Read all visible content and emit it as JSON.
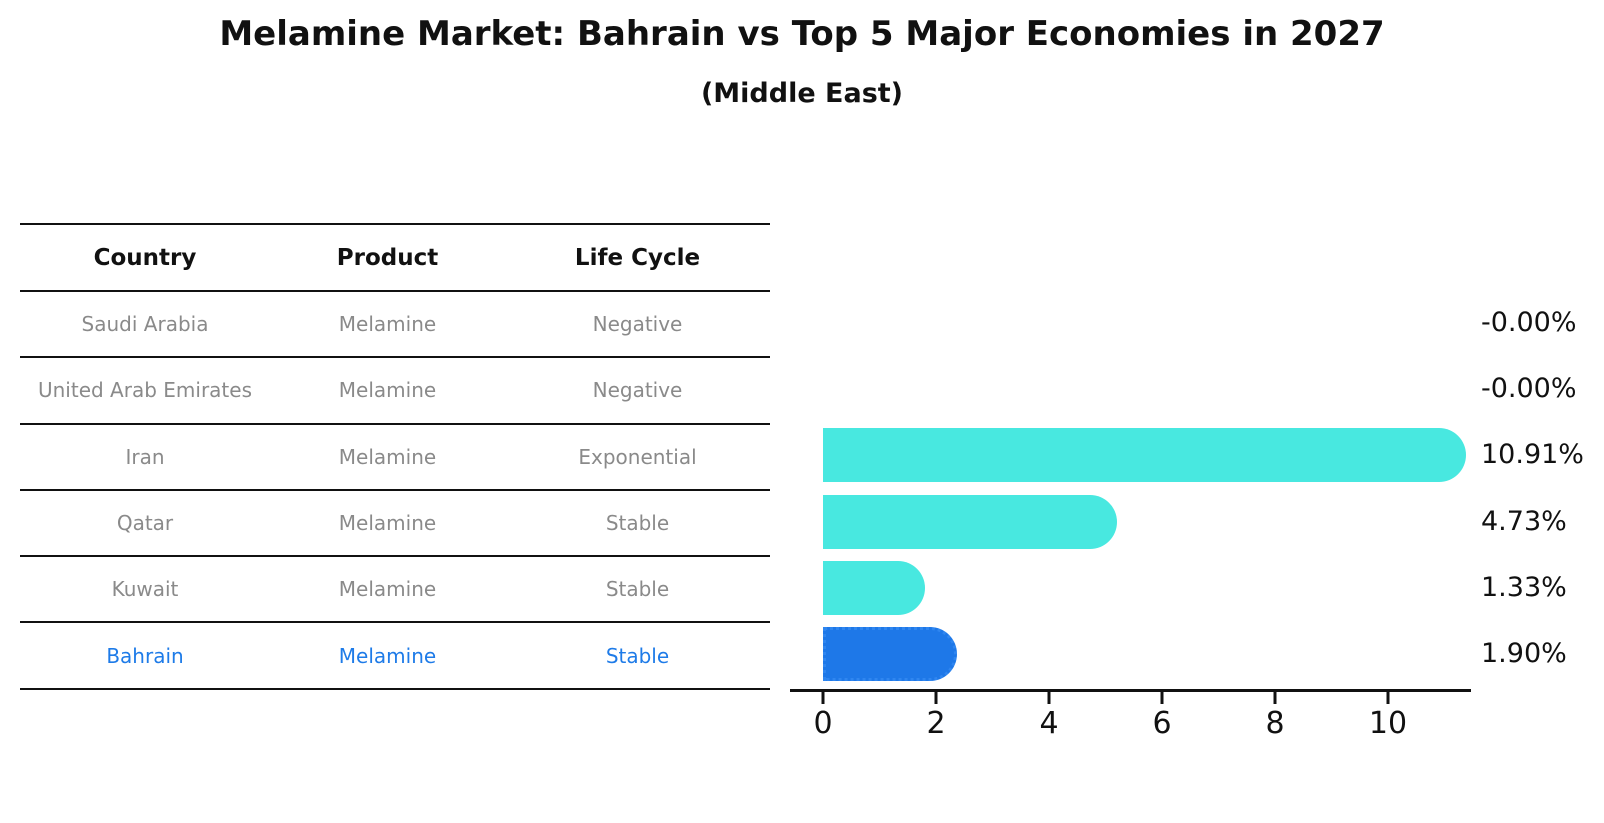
{
  "title": "Melamine Market: Bahrain vs Top 5 Major Economies in 2027",
  "subtitle": "(Middle East)",
  "table": {
    "headers": [
      "Country",
      "Product",
      "Life Cycle"
    ],
    "rows": [
      {
        "country": "Saudi Arabia",
        "product": "Melamine",
        "life_cycle": "Negative",
        "highlighted": false
      },
      {
        "country": "United Arab Emirates",
        "product": "Melamine",
        "life_cycle": "Negative",
        "highlighted": false
      },
      {
        "country": "Iran",
        "product": "Melamine",
        "life_cycle": "Exponential",
        "highlighted": false
      },
      {
        "country": "Qatar",
        "product": "Melamine",
        "life_cycle": "Stable",
        "highlighted": false
      },
      {
        "country": "Kuwait",
        "product": "Melamine",
        "life_cycle": "Stable",
        "highlighted": false
      },
      {
        "country": "Bahrain",
        "product": "Melamine",
        "life_cycle": "Stable",
        "highlighted": true
      }
    ]
  },
  "chart_data": {
    "type": "bar",
    "orientation": "horizontal",
    "title": "Melamine Market: Bahrain vs Top 5 Major Economies in 2027 (Middle East)",
    "categories": [
      "Saudi Arabia",
      "United Arab Emirates",
      "Iran",
      "Qatar",
      "Kuwait",
      "Bahrain"
    ],
    "values": [
      -0.0,
      -0.0,
      10.91,
      4.73,
      1.33,
      1.9
    ],
    "value_labels": [
      "-0.00%",
      "-0.00%",
      "10.91%",
      "4.73%",
      "1.33%",
      "1.90%"
    ],
    "xlabel": "",
    "ylabel": "",
    "xticks": [
      0,
      2,
      4,
      6,
      8,
      10
    ],
    "xlim": [
      0,
      11.4
    ],
    "grid": false,
    "legend": "none",
    "highlight_index": 5
  },
  "colors": {
    "bar_cyan": "#48E8E0",
    "bar_highlight_blue": "#1E78E8",
    "highlight_border_blue": "#2F86F0",
    "highlight_text_blue": "#1E7BE8",
    "table_text_gray": "#8A8A8A",
    "axis_black": "#111111"
  }
}
